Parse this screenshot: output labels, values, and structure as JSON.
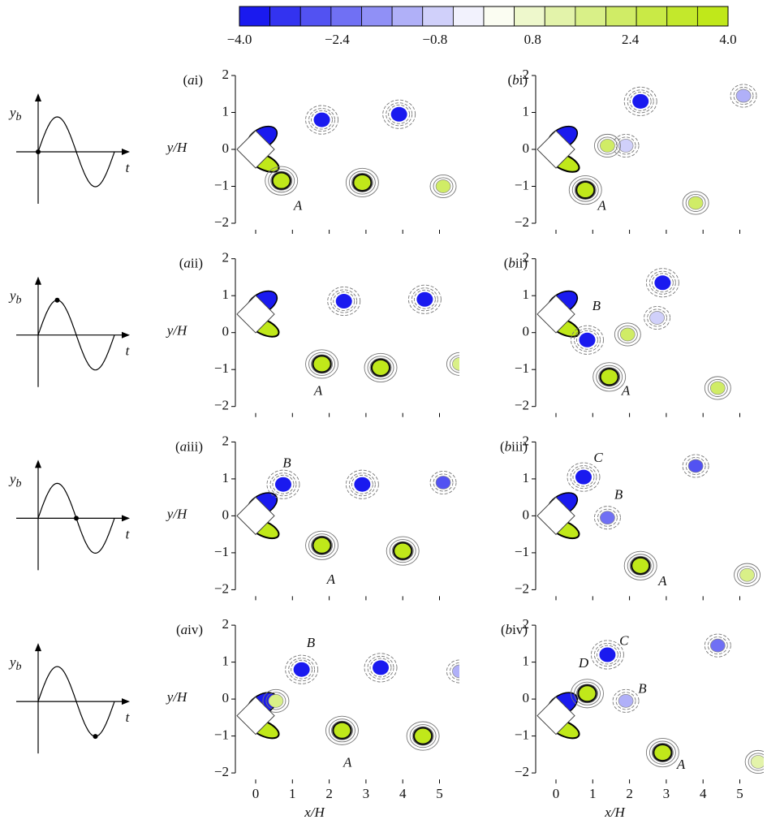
{
  "colorbar": {
    "range": [
      -4,
      4
    ],
    "colors": [
      "#1a1aef",
      "#3333f0",
      "#5252f2",
      "#7070f4",
      "#9090f6",
      "#b0b0f8",
      "#d0d0fa",
      "#f2f2fd",
      "#fbfdf2",
      "#eef8cc",
      "#e3f3aa",
      "#d9f088",
      "#d0ec66",
      "#c9ea46",
      "#c3e82c",
      "#c0e81a"
    ],
    "ticks": [
      {
        "value": -4,
        "label": "−4.0"
      },
      {
        "value": -2.4,
        "label": "−2.4"
      },
      {
        "value": -0.8,
        "label": "−0.8"
      },
      {
        "value": 0.8,
        "label": "0.8"
      },
      {
        "value": 2.4,
        "label": "2.4"
      },
      {
        "value": 4,
        "label": "4.0"
      }
    ]
  },
  "schematic": {
    "y_label": "y",
    "y_sub": "b",
    "x_label": "t"
  },
  "axes": {
    "y_label": "y/H",
    "x_label": "x/H",
    "xlim": [
      -0.55,
      5.55
    ],
    "ylim": [
      -2,
      2
    ],
    "xticks": [
      0,
      1,
      2,
      3,
      4,
      5
    ],
    "yticks": [
      2,
      1,
      0,
      {
        "value": -1,
        "label": "−1"
      },
      {
        "value": -2,
        "label": "−2"
      }
    ]
  },
  "panels": [
    {
      "label": [
        "(",
        "a",
        "i)"
      ],
      "annotations": [
        "A"
      ]
    },
    {
      "label": [
        "(",
        "b",
        "i)"
      ],
      "annotations": [
        "A"
      ]
    },
    {
      "label": [
        "(",
        "a",
        "ii)"
      ],
      "annotations": [
        "A"
      ]
    },
    {
      "label": [
        "(",
        "b",
        "ii)"
      ],
      "annotations": [
        "B",
        "A"
      ]
    },
    {
      "label": [
        "(",
        "a",
        "iii)"
      ],
      "annotations": [
        "B",
        "A"
      ]
    },
    {
      "label": [
        "(",
        "b",
        "iii)"
      ],
      "annotations": [
        "C",
        "B",
        "A"
      ]
    },
    {
      "label": [
        "(",
        "a",
        "iv)"
      ],
      "annotations": [
        "B",
        "A"
      ]
    },
    {
      "label": [
        "(",
        "b",
        "iv)"
      ],
      "annotations": [
        "C",
        "B",
        "D",
        "A"
      ]
    }
  ]
}
